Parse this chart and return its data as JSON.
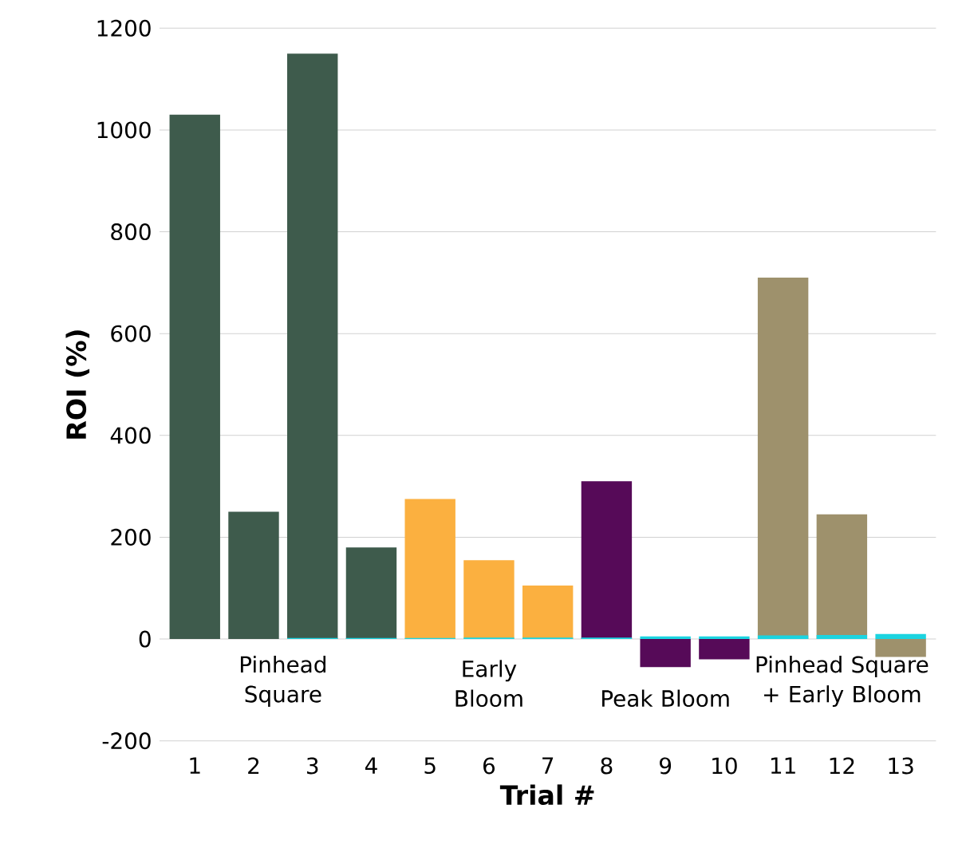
{
  "chart_data": {
    "type": "bar",
    "xlabel": "Trial #",
    "ylabel": "ROI (%)",
    "categories": [
      "1",
      "2",
      "3",
      "4",
      "5",
      "6",
      "7",
      "8",
      "9",
      "10",
      "11",
      "12",
      "13"
    ],
    "series": [
      {
        "colors": [
          "#3e5b4c",
          "#3e5b4c",
          "#3e5b4c",
          "#3e5b4c",
          "#fbb040",
          "#fbb040",
          "#fbb040",
          "#560a58",
          "#560a58",
          "#560a58",
          "#9e916c",
          "#9e916c",
          "#9e916c"
        ],
        "values": [
          1030,
          250,
          1150,
          180,
          275,
          155,
          105,
          310,
          -55,
          -40,
          710,
          245,
          -35
        ]
      },
      {
        "color": "#1bd4e0",
        "values": [
          0,
          0,
          2,
          2,
          2,
          3,
          3,
          3,
          5,
          5,
          7,
          8,
          10
        ]
      }
    ],
    "ylim": [
      -200,
      1200
    ],
    "yticks": [
      -200,
      0,
      200,
      400,
      600,
      800,
      1000,
      1200
    ],
    "grid": "y",
    "annotations": [
      "Pinhead Square",
      "Early Bloom",
      "Peak Bloom",
      "Pinhead Square + Early Bloom"
    ]
  }
}
